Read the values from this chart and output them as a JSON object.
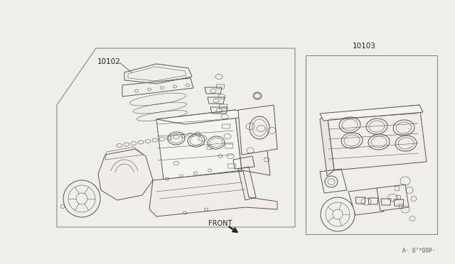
{
  "bg_color": "#f0eeeb",
  "fig_width": 6.4,
  "fig_height": 3.72,
  "dpi": 100,
  "label_10102": "10102",
  "label_10103": "10103",
  "front_label": "FRONT",
  "bottom_right_text": "A· 0’*00P·",
  "line_color": "#555555",
  "text_color": "#222222",
  "lw_main": 0.7,
  "lw_thin": 0.4,
  "lw_thick": 1.0
}
